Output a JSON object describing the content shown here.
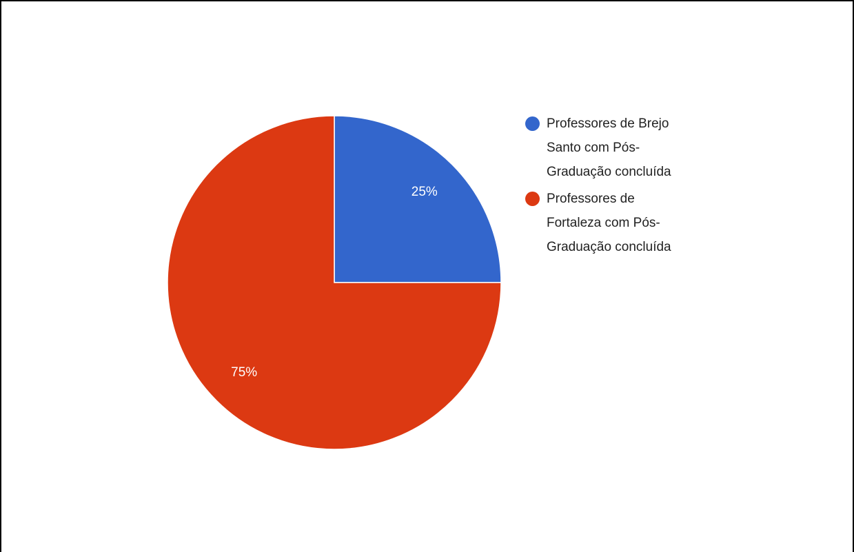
{
  "chart_data": {
    "type": "pie",
    "categories": [
      "Professores de Brejo Santo com Pós-Graduação concluída",
      "Professores de Fortaleza com Pós-Graduação concluída"
    ],
    "values": [
      25,
      75
    ],
    "value_labels": [
      "25%",
      "75%"
    ],
    "colors": [
      "#3366cc",
      "#dc3912"
    ],
    "legend": "right"
  }
}
